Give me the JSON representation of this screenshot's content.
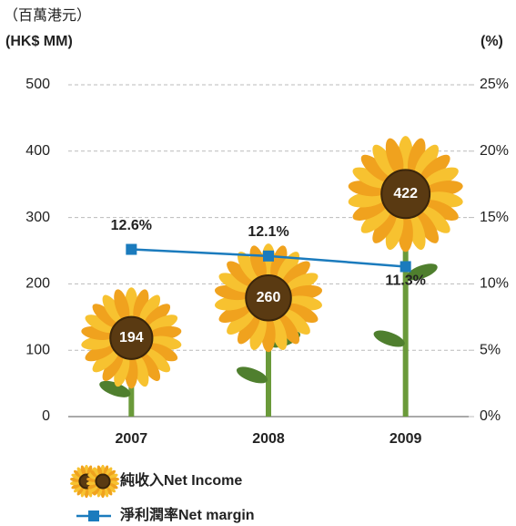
{
  "chart_data": {
    "type": "bar",
    "unit_label": "（百萬港元）",
    "y_axis_label": "(HK$ MM)",
    "y2_axis_label": "(%)",
    "categories": [
      "2007",
      "2008",
      "2009"
    ],
    "series": [
      {
        "name": "純收入Net Income",
        "type": "bar",
        "color": "#f0a21e",
        "values": [
          194,
          260,
          422
        ]
      },
      {
        "name": "淨利潤率Net margin",
        "type": "line",
        "axis": "y2",
        "color": "#1b7bbd",
        "values": [
          12.6,
          12.1,
          11.3
        ],
        "value_labels": [
          "12.6%",
          "12.1%",
          "11.3%"
        ]
      }
    ],
    "ylim": [
      0,
      500
    ],
    "yticks": [
      0,
      100,
      200,
      300,
      400,
      500
    ],
    "y2lim": [
      0,
      25
    ],
    "y2ticks": [
      {
        "value": 0,
        "label": "0%"
      },
      {
        "value": 5,
        "label": "5%"
      },
      {
        "value": 10,
        "label": "10%"
      },
      {
        "value": 15,
        "label": "15%"
      },
      {
        "value": 20,
        "label": "20%"
      },
      {
        "value": 25,
        "label": "25%"
      }
    ],
    "grid": true
  }
}
